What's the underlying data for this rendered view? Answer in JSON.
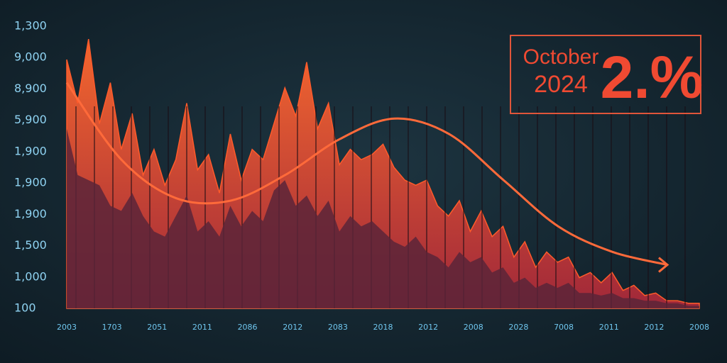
{
  "chart_data": {
    "type": "area",
    "annotation_lines": [
      "October",
      "2024"
    ],
    "annotation_value": "2.%",
    "y_labels": [
      "1,300",
      "9,000",
      "8,900",
      "5,900",
      "1,900",
      "1,900",
      "1,900",
      "1,500",
      "1,000",
      "100"
    ],
    "x_labels": [
      "2003",
      "1703",
      "2051",
      "2011",
      "2086",
      "2012",
      "2083",
      "2018",
      "2012",
      "2008",
      "2028",
      "7008",
      "2011",
      "2012",
      "2008"
    ],
    "ylim": [
      0,
      110
    ],
    "series": [
      {
        "color": "#ff5a2a",
        "values": [
          97,
          80,
          105,
          72,
          88,
          62,
          76,
          52,
          62,
          48,
          58,
          80,
          54,
          60,
          45,
          68,
          50,
          62,
          58,
          72,
          86,
          75,
          96,
          70,
          80,
          56,
          62,
          58,
          60,
          64,
          55,
          50,
          48,
          50,
          40,
          36,
          42,
          30,
          38,
          28,
          32,
          20,
          26,
          16,
          22,
          18,
          20,
          12,
          14,
          10,
          14,
          7,
          9,
          5,
          6,
          3,
          3,
          2,
          2
        ]
      },
      {
        "color": "#5a2438",
        "values": [
          70,
          52,
          50,
          48,
          40,
          38,
          45,
          36,
          30,
          28,
          36,
          44,
          30,
          34,
          28,
          40,
          32,
          38,
          34,
          46,
          50,
          40,
          44,
          36,
          42,
          30,
          36,
          32,
          34,
          30,
          26,
          24,
          28,
          22,
          20,
          16,
          22,
          18,
          20,
          14,
          16,
          10,
          12,
          8,
          10,
          8,
          10,
          6,
          6,
          5,
          6,
          4,
          4,
          3,
          3,
          2,
          2,
          1,
          1
        ]
      }
    ],
    "trend": {
      "color": "#ff6a3a",
      "values": [
        88,
        58,
        43,
        42,
        52,
        66,
        74,
        68,
        50,
        32,
        22,
        17
      ]
    }
  }
}
